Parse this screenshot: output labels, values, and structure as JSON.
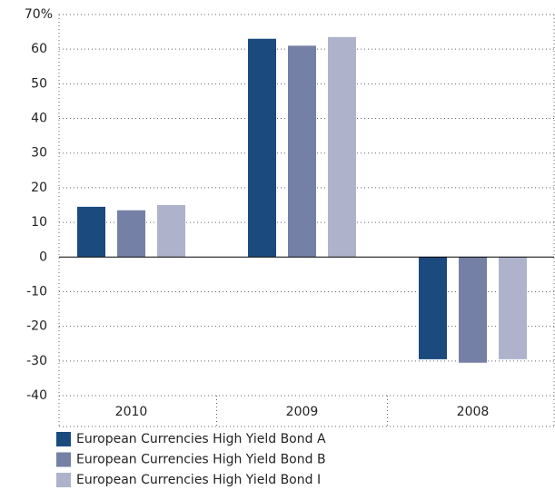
{
  "chart_data": {
    "type": "bar",
    "categories": [
      "2010",
      "2009",
      "2008"
    ],
    "series": [
      {
        "name": "European Currencies High Yield Bond A",
        "color": "#1a4a7e",
        "values": [
          14.5,
          63,
          -29.5
        ]
      },
      {
        "name": "European Currencies High Yield Bond B",
        "color": "#7580a6",
        "values": [
          13.5,
          61,
          -30.5
        ]
      },
      {
        "name": "European Currencies High Yield Bond I",
        "color": "#aeb3cb",
        "values": [
          15,
          63.5,
          -29.5
        ]
      }
    ],
    "ylim": [
      -40,
      70
    ],
    "yticks": [
      -40,
      -30,
      -20,
      -10,
      0,
      10,
      20,
      30,
      40,
      50,
      60,
      {
        "value": 70,
        "label": "70%"
      }
    ],
    "grid": true
  }
}
